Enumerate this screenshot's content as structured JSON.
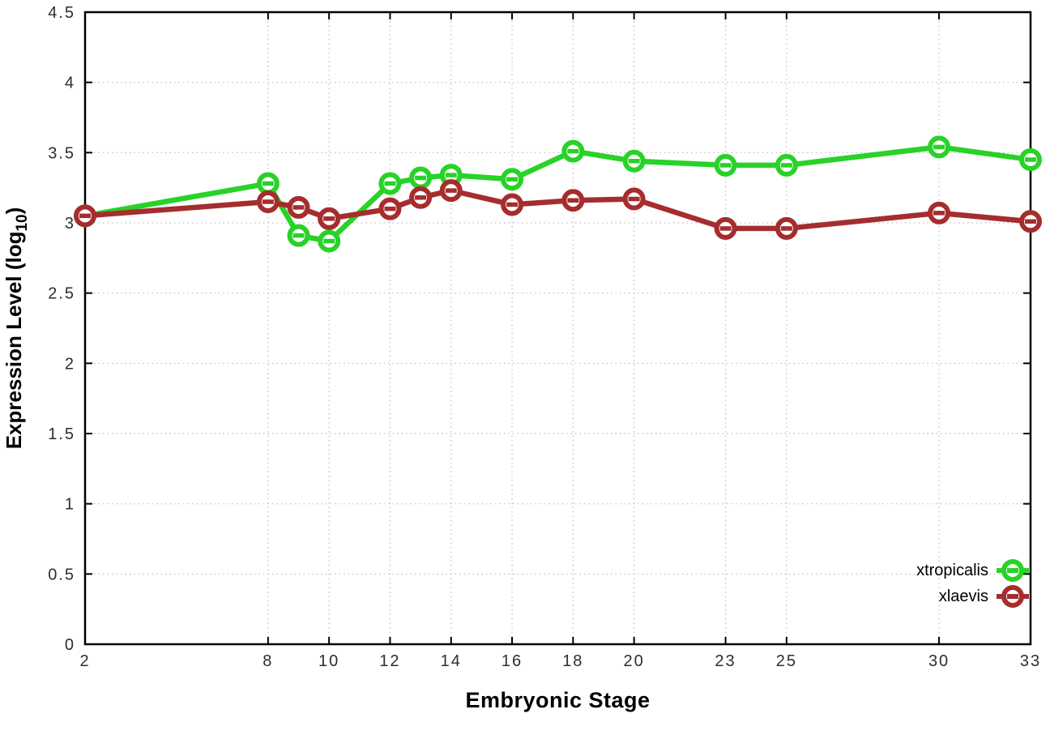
{
  "chart_data": {
    "type": "line",
    "title": "",
    "xlabel": "Embryonic Stage",
    "ylabel": "Expression Level (log10)",
    "ylabel_parts": {
      "pre": "Expression Level (log",
      "sub": "10",
      "post": ")"
    },
    "xlim": [
      2,
      33
    ],
    "ylim": [
      0,
      4.5
    ],
    "grid": true,
    "grid_style": "dotted",
    "legend_position": "bottom-right",
    "xtick_values": [
      2,
      8,
      10,
      12,
      14,
      16,
      18,
      20,
      23,
      25,
      30,
      33
    ],
    "xtick_labels": [
      "2",
      "8",
      "10",
      "12",
      "14",
      "16",
      "18",
      "20",
      "23",
      "25",
      "30",
      "33"
    ],
    "ytick_values": [
      0,
      0.5,
      1,
      1.5,
      2,
      2.5,
      3,
      3.5,
      4,
      4.5
    ],
    "ytick_labels": [
      "0",
      "0.5",
      "1",
      "1.5",
      "2",
      "2.5",
      "3",
      "3.5",
      "4",
      "4.5"
    ],
    "x": [
      2,
      8,
      9,
      10,
      12,
      13,
      14,
      16,
      18,
      20,
      23,
      25,
      30,
      33
    ],
    "series": [
      {
        "name": "xtropicalis",
        "color": "#28d228",
        "marker": "circle-with-horizontal-bar",
        "values": [
          3.05,
          3.28,
          2.91,
          2.87,
          3.28,
          3.32,
          3.34,
          3.31,
          3.51,
          3.44,
          3.41,
          3.41,
          3.54,
          3.45
        ]
      },
      {
        "name": "xlaevis",
        "color": "#a52d2d",
        "marker": "circle-with-horizontal-bar",
        "values": [
          3.05,
          3.15,
          3.11,
          3.03,
          3.1,
          3.18,
          3.23,
          3.13,
          3.16,
          3.17,
          2.96,
          2.96,
          3.07,
          3.01
        ]
      }
    ],
    "colors": {
      "frame": "#000000",
      "grid": "#bcbcbc",
      "tick_label": "#2e2e2e",
      "background": "#ffffff"
    }
  }
}
